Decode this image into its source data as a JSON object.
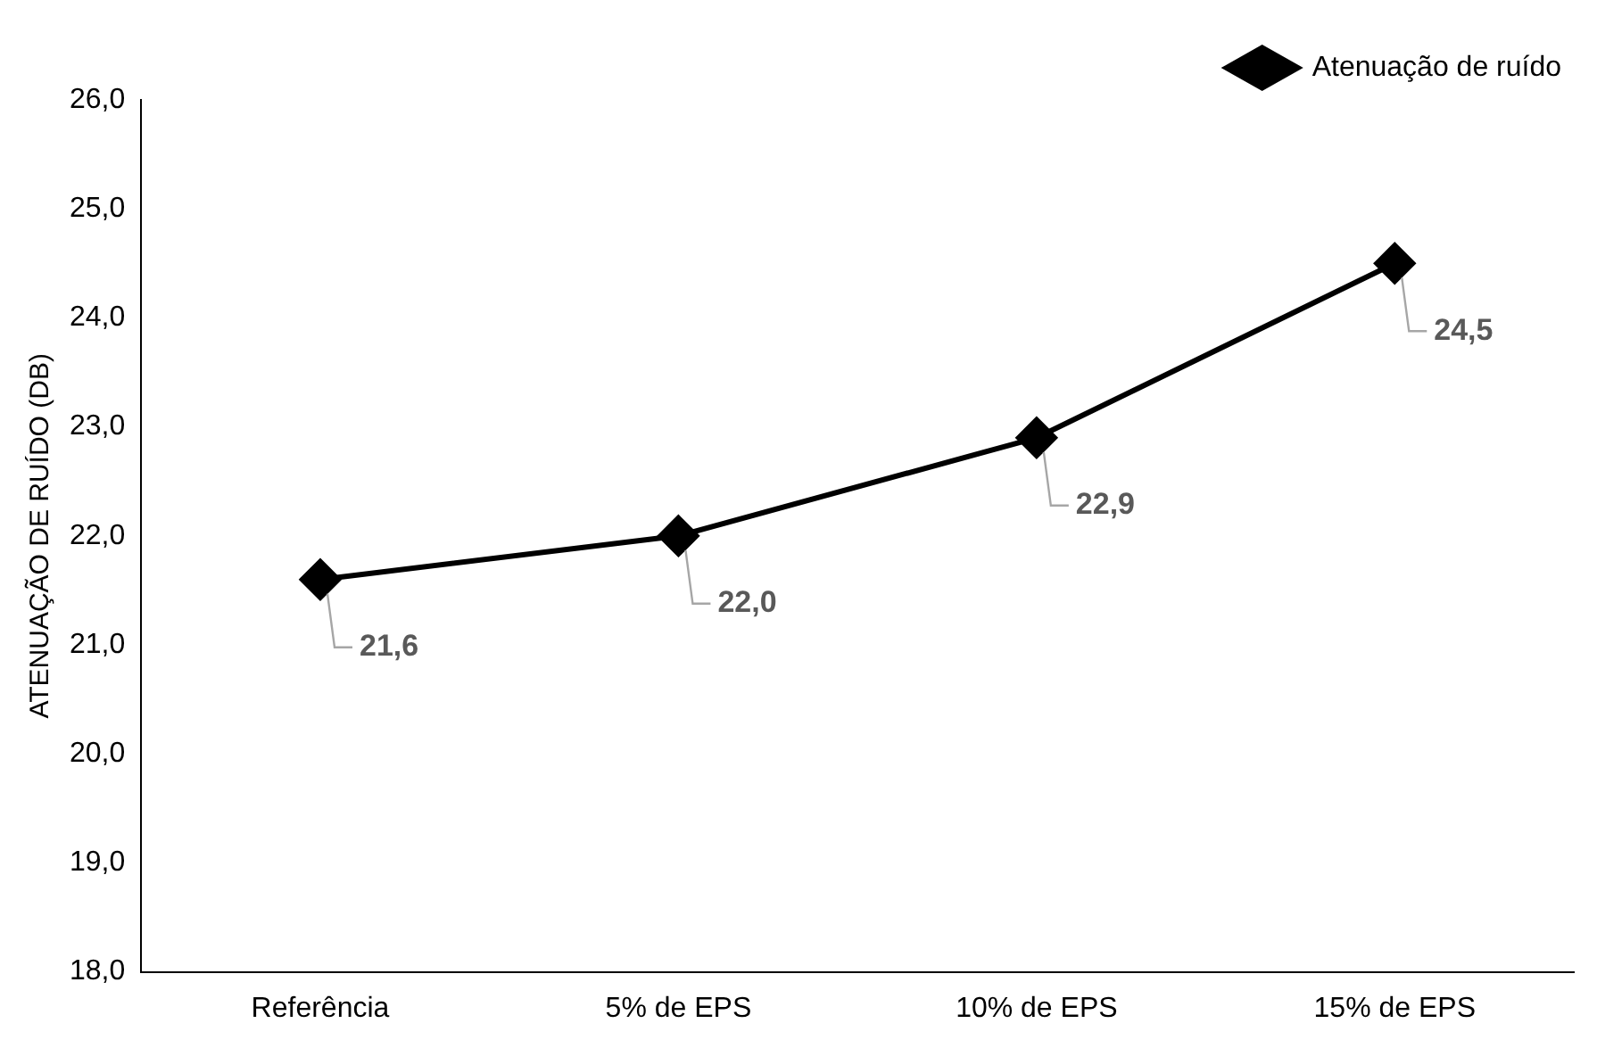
{
  "chart_data": {
    "type": "line",
    "ylabel": "ATENUAÇÃO DE RUÍDO (DB)",
    "categories": [
      "Referência",
      "5% de EPS",
      "10% de EPS",
      "15% de EPS"
    ],
    "series": [
      {
        "name": "Atenuação de ruído",
        "color": "#000000",
        "values": [
          21.6,
          22.0,
          22.9,
          24.5
        ],
        "value_labels": [
          "21,6",
          "22,0",
          "22,9",
          "24,5"
        ]
      }
    ],
    "ylim": [
      18,
      26
    ],
    "yticks": [
      {
        "value": 18,
        "label": "18,0"
      },
      {
        "value": 19,
        "label": "19,0"
      },
      {
        "value": 20,
        "label": "20,0"
      },
      {
        "value": 21,
        "label": "21,0"
      },
      {
        "value": 22,
        "label": "22,0"
      },
      {
        "value": 23,
        "label": "23,0"
      },
      {
        "value": 24,
        "label": "24,0"
      },
      {
        "value": 25,
        "label": "25,0"
      },
      {
        "value": 26,
        "label": "26,0"
      }
    ],
    "grid": false,
    "legend": "top right",
    "marker": "diamond",
    "line_style": "solid"
  }
}
